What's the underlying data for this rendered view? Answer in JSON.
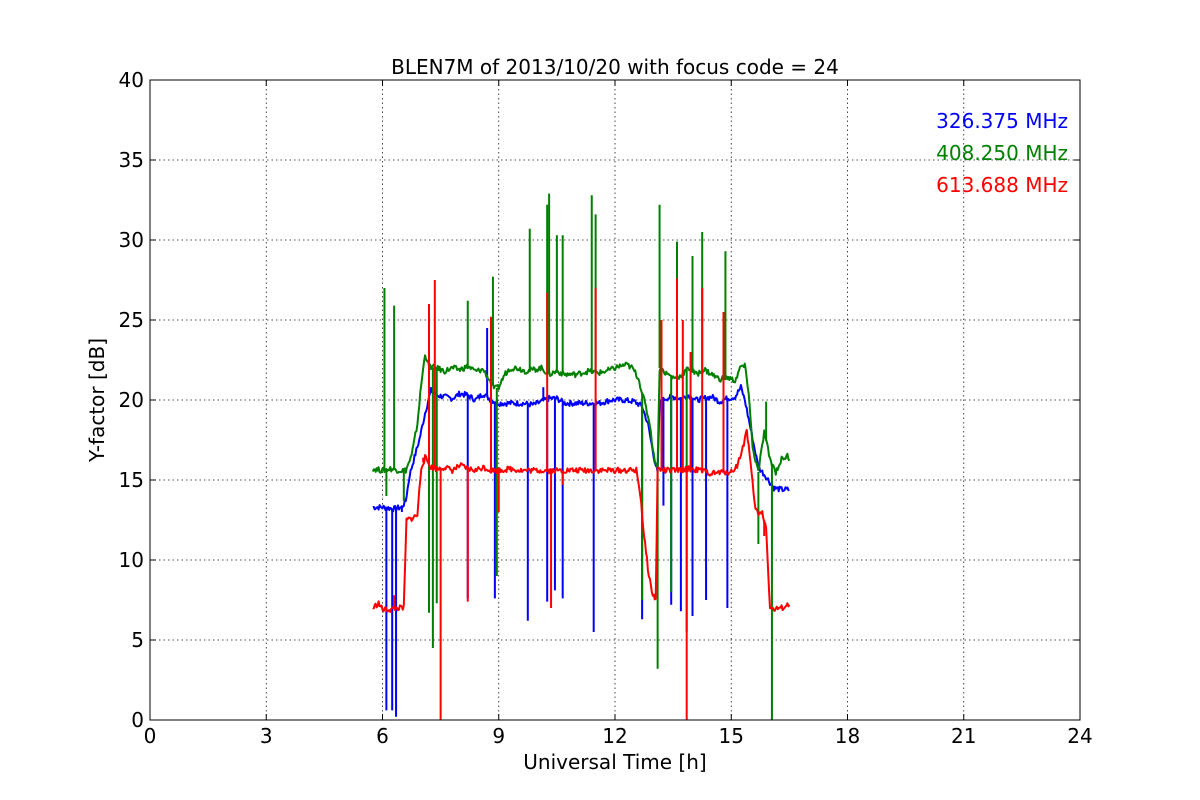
{
  "chart_data": {
    "type": "line",
    "title": "BLEN7M of 2013/10/20 with focus code = 24",
    "xlabel": "Universal Time [h]",
    "ylabel": "Y-factor [dB]",
    "xlim": [
      0,
      24
    ],
    "ylim": [
      0,
      40
    ],
    "xticks": [
      0,
      3,
      6,
      9,
      12,
      15,
      18,
      21,
      24
    ],
    "yticks": [
      0,
      5,
      10,
      15,
      20,
      25,
      30,
      35,
      40
    ],
    "grid": true,
    "legend_position": "top-right",
    "series": [
      {
        "name": "326.375 MHz",
        "color": "#0000ff",
        "points": [
          [
            5.75,
            13.3
          ],
          [
            6.0,
            13.3
          ],
          [
            6.3,
            13.2
          ],
          [
            6.5,
            13.3
          ],
          [
            6.6,
            13.7
          ],
          [
            6.7,
            15.3
          ],
          [
            6.8,
            16.2
          ],
          [
            6.95,
            17.5
          ],
          [
            7.1,
            19.2
          ],
          [
            7.25,
            20.6
          ],
          [
            7.4,
            20.3
          ],
          [
            7.6,
            20.2
          ],
          [
            7.8,
            20.1
          ],
          [
            8.0,
            20.4
          ],
          [
            8.2,
            20.3
          ],
          [
            8.4,
            20.0
          ],
          [
            8.6,
            20.4
          ],
          [
            8.8,
            20.0
          ],
          [
            9.0,
            19.8
          ],
          [
            9.3,
            19.8
          ],
          [
            9.6,
            19.8
          ],
          [
            9.9,
            19.7
          ],
          [
            10.1,
            19.9
          ],
          [
            10.3,
            20.1
          ],
          [
            10.5,
            20.1
          ],
          [
            10.7,
            19.8
          ],
          [
            11.0,
            19.8
          ],
          [
            11.3,
            19.8
          ],
          [
            11.6,
            19.8
          ],
          [
            11.9,
            20.0
          ],
          [
            12.2,
            20.0
          ],
          [
            12.5,
            19.9
          ],
          [
            12.7,
            19.6
          ],
          [
            12.85,
            18.5
          ],
          [
            13.0,
            16.5
          ],
          [
            13.1,
            15.4
          ],
          [
            13.15,
            19.8
          ],
          [
            13.3,
            20.1
          ],
          [
            13.5,
            20.2
          ],
          [
            13.7,
            20.1
          ],
          [
            13.9,
            20.3
          ],
          [
            14.1,
            20.0
          ],
          [
            14.3,
            20.1
          ],
          [
            14.5,
            20.2
          ],
          [
            14.7,
            19.9
          ],
          [
            14.9,
            20.1
          ],
          [
            15.1,
            20.2
          ],
          [
            15.25,
            20.8
          ],
          [
            15.35,
            20.0
          ],
          [
            15.45,
            18.8
          ],
          [
            15.55,
            17.6
          ],
          [
            15.7,
            15.8
          ],
          [
            15.9,
            15.2
          ],
          [
            16.1,
            14.5
          ],
          [
            16.3,
            14.4
          ],
          [
            16.5,
            14.4
          ]
        ],
        "spikes": [
          [
            6.1,
            0.6
          ],
          [
            6.25,
            0.6
          ],
          [
            6.35,
            0.2
          ],
          [
            6.5,
            13.0
          ],
          [
            8.7,
            24.5
          ],
          [
            8.2,
            7.6
          ],
          [
            8.9,
            7.6
          ],
          [
            9.75,
            6.2
          ],
          [
            10.25,
            7.4
          ],
          [
            10.45,
            8.1
          ],
          [
            10.65,
            7.6
          ],
          [
            11.45,
            5.5
          ],
          [
            12.7,
            6.3
          ],
          [
            13.25,
            13.4
          ],
          [
            13.45,
            7.2
          ],
          [
            13.7,
            6.8
          ],
          [
            14.0,
            6.5
          ],
          [
            14.35,
            7.5
          ],
          [
            14.9,
            7.0
          ],
          [
            10.15,
            20.8
          ]
        ]
      },
      {
        "name": "408.250 MHz",
        "color": "#008000",
        "points": [
          [
            5.75,
            15.7
          ],
          [
            6.0,
            15.6
          ],
          [
            6.2,
            15.7
          ],
          [
            6.45,
            15.6
          ],
          [
            6.6,
            15.6
          ],
          [
            6.75,
            16.5
          ],
          [
            6.9,
            18.5
          ],
          [
            7.0,
            21.0
          ],
          [
            7.1,
            22.9
          ],
          [
            7.2,
            22.1
          ],
          [
            7.4,
            22.0
          ],
          [
            7.6,
            21.8
          ],
          [
            7.8,
            22.0
          ],
          [
            8.0,
            21.9
          ],
          [
            8.2,
            22.1
          ],
          [
            8.4,
            21.8
          ],
          [
            8.6,
            21.9
          ],
          [
            8.75,
            21.3
          ],
          [
            8.9,
            20.7
          ],
          [
            9.0,
            20.8
          ],
          [
            9.15,
            21.6
          ],
          [
            9.3,
            22.0
          ],
          [
            9.5,
            22.0
          ],
          [
            9.7,
            21.8
          ],
          [
            9.9,
            21.9
          ],
          [
            10.1,
            22.0
          ],
          [
            10.3,
            21.6
          ],
          [
            10.5,
            21.8
          ],
          [
            10.7,
            21.6
          ],
          [
            11.0,
            21.6
          ],
          [
            11.3,
            21.8
          ],
          [
            11.6,
            21.7
          ],
          [
            11.9,
            21.9
          ],
          [
            12.1,
            22.1
          ],
          [
            12.3,
            22.2
          ],
          [
            12.45,
            22.0
          ],
          [
            12.6,
            21.4
          ],
          [
            12.75,
            20.0
          ],
          [
            12.9,
            18.5
          ],
          [
            13.0,
            16.5
          ],
          [
            13.1,
            15.8
          ],
          [
            13.15,
            22.0
          ],
          [
            13.3,
            21.7
          ],
          [
            13.5,
            21.4
          ],
          [
            13.7,
            21.5
          ],
          [
            13.9,
            22.0
          ],
          [
            14.1,
            21.6
          ],
          [
            14.3,
            21.9
          ],
          [
            14.5,
            21.6
          ],
          [
            14.7,
            21.3
          ],
          [
            14.9,
            21.4
          ],
          [
            15.1,
            21.2
          ],
          [
            15.25,
            22.1
          ],
          [
            15.35,
            22.1
          ],
          [
            15.45,
            20.5
          ],
          [
            15.55,
            17.0
          ],
          [
            15.7,
            15.5
          ],
          [
            15.85,
            18.0
          ],
          [
            16.0,
            16.3
          ],
          [
            16.15,
            15.5
          ],
          [
            16.3,
            16.3
          ],
          [
            16.45,
            16.5
          ],
          [
            16.5,
            16.2
          ]
        ],
        "spikes": [
          [
            6.05,
            27.0
          ],
          [
            6.1,
            14.0
          ],
          [
            6.3,
            25.9
          ],
          [
            6.55,
            13.7
          ],
          [
            7.2,
            6.7
          ],
          [
            7.3,
            4.5
          ],
          [
            7.4,
            7.3
          ],
          [
            8.2,
            26.2
          ],
          [
            8.85,
            27.7
          ],
          [
            8.95,
            9.0
          ],
          [
            9.8,
            30.7
          ],
          [
            10.25,
            32.2
          ],
          [
            10.3,
            32.9
          ],
          [
            10.5,
            30.3
          ],
          [
            10.65,
            30.3
          ],
          [
            11.4,
            32.8
          ],
          [
            11.5,
            31.6
          ],
          [
            12.7,
            7.5
          ],
          [
            13.1,
            3.2
          ],
          [
            13.15,
            32.2
          ],
          [
            13.45,
            8.0
          ],
          [
            13.6,
            29.9
          ],
          [
            13.85,
            5.5
          ],
          [
            14.0,
            29.0
          ],
          [
            14.25,
            30.5
          ],
          [
            14.85,
            29.3
          ],
          [
            15.7,
            11.0
          ],
          [
            15.9,
            19.9
          ],
          [
            16.05,
            0.0
          ]
        ]
      },
      {
        "name": "613.688 MHz",
        "color": "#ff0000",
        "points": [
          [
            5.75,
            7.0
          ],
          [
            5.9,
            7.3
          ],
          [
            6.0,
            6.9
          ],
          [
            6.2,
            6.9
          ],
          [
            6.4,
            7.0
          ],
          [
            6.55,
            7.0
          ],
          [
            6.62,
            12.5
          ],
          [
            6.75,
            12.6
          ],
          [
            6.9,
            12.8
          ],
          [
            7.0,
            15.8
          ],
          [
            7.1,
            16.4
          ],
          [
            7.25,
            15.8
          ],
          [
            7.4,
            15.7
          ],
          [
            7.6,
            15.8
          ],
          [
            7.8,
            15.6
          ],
          [
            8.0,
            15.9
          ],
          [
            8.2,
            15.7
          ],
          [
            8.4,
            15.6
          ],
          [
            8.6,
            15.8
          ],
          [
            8.8,
            15.6
          ],
          [
            9.0,
            15.6
          ],
          [
            9.3,
            15.7
          ],
          [
            9.6,
            15.6
          ],
          [
            9.9,
            15.6
          ],
          [
            10.2,
            15.6
          ],
          [
            10.5,
            15.6
          ],
          [
            10.8,
            15.6
          ],
          [
            11.1,
            15.6
          ],
          [
            11.4,
            15.6
          ],
          [
            11.7,
            15.6
          ],
          [
            12.0,
            15.6
          ],
          [
            12.3,
            15.6
          ],
          [
            12.55,
            15.6
          ],
          [
            12.65,
            14.2
          ],
          [
            12.75,
            11.5
          ],
          [
            12.85,
            9.5
          ],
          [
            12.95,
            8.0
          ],
          [
            13.05,
            7.5
          ],
          [
            13.1,
            15.7
          ],
          [
            13.3,
            15.6
          ],
          [
            13.6,
            15.6
          ],
          [
            13.9,
            15.7
          ],
          [
            14.2,
            15.6
          ],
          [
            14.5,
            15.4
          ],
          [
            14.8,
            15.5
          ],
          [
            15.0,
            15.5
          ],
          [
            15.15,
            15.9
          ],
          [
            15.3,
            17.0
          ],
          [
            15.4,
            18.2
          ],
          [
            15.5,
            16.0
          ],
          [
            15.6,
            13.5
          ],
          [
            15.7,
            12.8
          ],
          [
            15.8,
            13.0
          ],
          [
            15.9,
            12.0
          ],
          [
            16.0,
            7.0
          ],
          [
            16.1,
            6.9
          ],
          [
            16.3,
            7.0
          ],
          [
            16.5,
            7.2
          ]
        ],
        "spikes": [
          [
            6.3,
            7.8
          ],
          [
            7.05,
            16.4
          ],
          [
            7.2,
            26.0
          ],
          [
            7.35,
            27.5
          ],
          [
            7.5,
            0.0
          ],
          [
            8.2,
            7.4
          ],
          [
            8.8,
            25.2
          ],
          [
            9.0,
            13.0
          ],
          [
            10.25,
            26.7
          ],
          [
            10.35,
            7.0
          ],
          [
            10.65,
            14.7
          ],
          [
            11.5,
            27.0
          ],
          [
            13.2,
            25.0
          ],
          [
            13.6,
            27.6
          ],
          [
            13.75,
            25.0
          ],
          [
            13.85,
            0.0
          ],
          [
            13.95,
            23.0
          ],
          [
            14.25,
            27.0
          ],
          [
            14.8,
            25.5
          ],
          [
            15.85,
            11.5
          ]
        ]
      }
    ]
  }
}
